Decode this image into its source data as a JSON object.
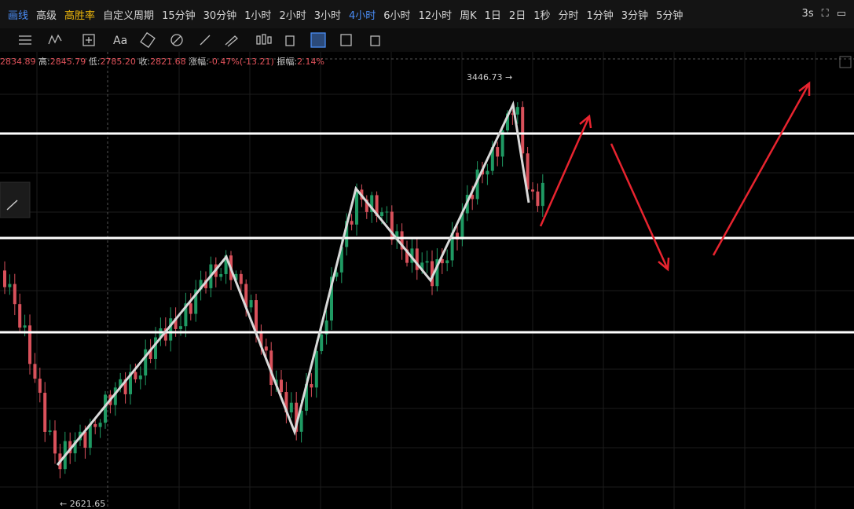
{
  "toolbar": {
    "tabs": [
      "画线",
      "高级",
      "高胜率",
      "自定义周期",
      "15分钟",
      "30分钟",
      "1小时",
      "2小时",
      "3小时",
      "4小时",
      "6小时",
      "12小时",
      "周K",
      "1日",
      "2日",
      "1秒",
      "分时",
      "1分钟",
      "3分钟",
      "5分钟"
    ],
    "active": "4小时",
    "refresh": "3s",
    "text_tool": "Aa"
  },
  "ohlc": {
    "open": "2834.89",
    "high_label": "高:",
    "high": "2845.79",
    "low_label": "低:",
    "low": "2785.20",
    "close_label": "收:",
    "close": "2821.68",
    "change_label": "涨幅:",
    "change": "-0.47%(-13.21)",
    "amplitude_label": "振幅:",
    "amplitude": "2.14%"
  },
  "price_labels": {
    "max": "3446.73 →",
    "min": "← 2621.65"
  }
}
